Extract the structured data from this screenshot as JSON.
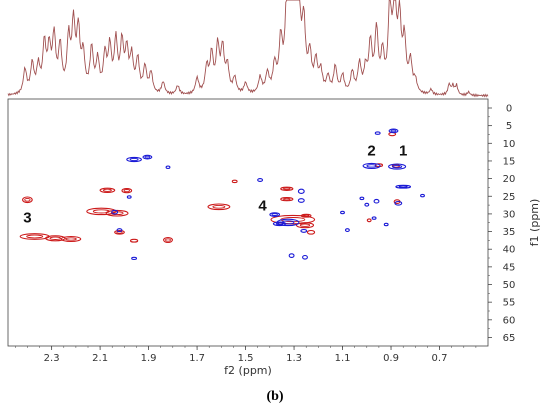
{
  "caption": "(b)",
  "colors": {
    "positive": "#cc1a1a",
    "negative": "#1a1ad6",
    "spectrum": "#a05050",
    "frame": "#444444"
  },
  "chart_data": {
    "type": "heatmap",
    "subtype": "2d-nmr-contour",
    "xlabel": "f2 (ppm)",
    "ylabel": "f1 (ppm)",
    "xlim": [
      2.48,
      0.5
    ],
    "ylim": [
      0,
      66
    ],
    "x_reversed": true,
    "y_inverted": true,
    "x_ticks": [
      {
        "v": 2.3,
        "label": "2.3"
      },
      {
        "v": 2.1,
        "label": "2.1"
      },
      {
        "v": 1.9,
        "label": "1.9"
      },
      {
        "v": 1.7,
        "label": "1.7"
      },
      {
        "v": 1.5,
        "label": "1.5"
      },
      {
        "v": 1.3,
        "label": "1.3"
      },
      {
        "v": 1.1,
        "label": "1.1"
      },
      {
        "v": 0.9,
        "label": "0.9"
      },
      {
        "v": 0.7,
        "label": "0.7"
      }
    ],
    "y_ticks": [
      {
        "v": 0,
        "label": "0"
      },
      {
        "v": 5,
        "label": "5"
      },
      {
        "v": 10,
        "label": "10"
      },
      {
        "v": 15,
        "label": "15"
      },
      {
        "v": 20,
        "label": "20"
      },
      {
        "v": 25,
        "label": "25"
      },
      {
        "v": 30,
        "label": "30"
      },
      {
        "v": 35,
        "label": "35"
      },
      {
        "v": 40,
        "label": "40"
      },
      {
        "v": 45,
        "label": "45"
      },
      {
        "v": 50,
        "label": "50"
      },
      {
        "v": 55,
        "label": "55"
      },
      {
        "v": 60,
        "label": "60"
      },
      {
        "v": 65,
        "label": "65"
      }
    ],
    "annotations": [
      {
        "label": "1",
        "x": 0.85,
        "y": 13.5
      },
      {
        "label": "2",
        "x": 0.98,
        "y": 13.5
      },
      {
        "label": "3",
        "x": 2.4,
        "y": 32.5
      },
      {
        "label": "4",
        "x": 1.43,
        "y": 29
      }
    ],
    "series": [
      {
        "phase": "positive",
        "points": [
          {
            "x": 2.4,
            "y": 26,
            "wx": 0.02,
            "wy": 0.8
          },
          {
            "x": 2.37,
            "y": 36.4,
            "wx": 0.06,
            "wy": 0.8
          },
          {
            "x": 2.285,
            "y": 36.9,
            "wx": 0.04,
            "wy": 0.7
          },
          {
            "x": 2.22,
            "y": 37.1,
            "wx": 0.04,
            "wy": 0.7
          },
          {
            "x": 2.095,
            "y": 29.3,
            "wx": 0.06,
            "wy": 0.9
          },
          {
            "x": 2.03,
            "y": 29.8,
            "wx": 0.045,
            "wy": 0.8
          },
          {
            "x": 2.07,
            "y": 23.3,
            "wx": 0.03,
            "wy": 0.6
          },
          {
            "x": 1.99,
            "y": 23.4,
            "wx": 0.02,
            "wy": 0.6
          },
          {
            "x": 2.02,
            "y": 35.2,
            "wx": 0.02,
            "wy": 0.5
          },
          {
            "x": 1.96,
            "y": 37.6,
            "wx": 0.015,
            "wy": 0.4
          },
          {
            "x": 1.82,
            "y": 37.4,
            "wx": 0.018,
            "wy": 0.7
          },
          {
            "x": 1.61,
            "y": 28,
            "wx": 0.045,
            "wy": 0.8
          },
          {
            "x": 1.545,
            "y": 20.8,
            "wx": 0.01,
            "wy": 0.35
          },
          {
            "x": 1.33,
            "y": 22.9,
            "wx": 0.025,
            "wy": 0.45
          },
          {
            "x": 1.33,
            "y": 25.8,
            "wx": 0.025,
            "wy": 0.45
          },
          {
            "x": 1.305,
            "y": 31.6,
            "wx": 0.09,
            "wy": 1.2
          },
          {
            "x": 1.255,
            "y": 33.2,
            "wx": 0.035,
            "wy": 0.7
          },
          {
            "x": 1.23,
            "y": 35.2,
            "wx": 0.015,
            "wy": 0.5
          },
          {
            "x": 1.25,
            "y": 30.5,
            "wx": 0.02,
            "wy": 0.4
          },
          {
            "x": 0.99,
            "y": 31.8,
            "wx": 0.008,
            "wy": 0.4
          },
          {
            "x": 0.95,
            "y": 16.2,
            "wx": 0.015,
            "wy": 0.4
          },
          {
            "x": 0.895,
            "y": 7.4,
            "wx": 0.014,
            "wy": 0.45
          },
          {
            "x": 0.88,
            "y": 16.4,
            "wx": 0.015,
            "wy": 0.4
          },
          {
            "x": 0.875,
            "y": 26.5,
            "wx": 0.012,
            "wy": 0.5
          }
        ]
      },
      {
        "phase": "negative",
        "points": [
          {
            "x": 1.96,
            "y": 14.6,
            "wx": 0.03,
            "wy": 0.6
          },
          {
            "x": 1.905,
            "y": 13.9,
            "wx": 0.018,
            "wy": 0.5
          },
          {
            "x": 2.04,
            "y": 29.5,
            "wx": 0.012,
            "wy": 0.5
          },
          {
            "x": 2.02,
            "y": 34.6,
            "wx": 0.01,
            "wy": 0.4
          },
          {
            "x": 1.98,
            "y": 25.2,
            "wx": 0.008,
            "wy": 0.35
          },
          {
            "x": 1.96,
            "y": 42.6,
            "wx": 0.01,
            "wy": 0.3
          },
          {
            "x": 1.82,
            "y": 16.8,
            "wx": 0.008,
            "wy": 0.35
          },
          {
            "x": 1.44,
            "y": 20.4,
            "wx": 0.01,
            "wy": 0.4
          },
          {
            "x": 1.38,
            "y": 30.2,
            "wx": 0.02,
            "wy": 0.5
          },
          {
            "x": 1.36,
            "y": 32.8,
            "wx": 0.025,
            "wy": 0.5
          },
          {
            "x": 1.325,
            "y": 32.4,
            "wx": 0.045,
            "wy": 0.9
          },
          {
            "x": 1.27,
            "y": 23.6,
            "wx": 0.012,
            "wy": 0.6
          },
          {
            "x": 1.27,
            "y": 26.2,
            "wx": 0.012,
            "wy": 0.5
          },
          {
            "x": 1.26,
            "y": 34.8,
            "wx": 0.012,
            "wy": 0.4
          },
          {
            "x": 1.31,
            "y": 41.8,
            "wx": 0.01,
            "wy": 0.5
          },
          {
            "x": 1.255,
            "y": 42.3,
            "wx": 0.01,
            "wy": 0.5
          },
          {
            "x": 1.1,
            "y": 29.6,
            "wx": 0.008,
            "wy": 0.35
          },
          {
            "x": 1.08,
            "y": 34.6,
            "wx": 0.008,
            "wy": 0.4
          },
          {
            "x": 1.02,
            "y": 25.6,
            "wx": 0.008,
            "wy": 0.35
          },
          {
            "x": 1.0,
            "y": 27.4,
            "wx": 0.008,
            "wy": 0.4
          },
          {
            "x": 0.97,
            "y": 31.2,
            "wx": 0.008,
            "wy": 0.35
          },
          {
            "x": 0.955,
            "y": 7.1,
            "wx": 0.01,
            "wy": 0.35
          },
          {
            "x": 0.98,
            "y": 16.4,
            "wx": 0.035,
            "wy": 0.7
          },
          {
            "x": 0.96,
            "y": 26.4,
            "wx": 0.01,
            "wy": 0.5
          },
          {
            "x": 0.89,
            "y": 6.5,
            "wx": 0.018,
            "wy": 0.5
          },
          {
            "x": 0.875,
            "y": 16.6,
            "wx": 0.035,
            "wy": 0.7
          },
          {
            "x": 0.85,
            "y": 22.3,
            "wx": 0.03,
            "wy": 0.4
          },
          {
            "x": 0.87,
            "y": 27.0,
            "wx": 0.014,
            "wy": 0.5
          },
          {
            "x": 0.77,
            "y": 24.8,
            "wx": 0.008,
            "wy": 0.35
          },
          {
            "x": 0.92,
            "y": 33.0,
            "wx": 0.008,
            "wy": 0.35
          }
        ]
      }
    ],
    "projection": {
      "axis": "f2",
      "peaks": [
        {
          "x": 2.41,
          "h": 0.28,
          "w": 0.008
        },
        {
          "x": 2.38,
          "h": 0.34,
          "w": 0.008
        },
        {
          "x": 2.355,
          "h": 0.3,
          "w": 0.008
        },
        {
          "x": 2.33,
          "h": 0.55,
          "w": 0.008
        },
        {
          "x": 2.31,
          "h": 0.48,
          "w": 0.008
        },
        {
          "x": 2.29,
          "h": 0.62,
          "w": 0.008
        },
        {
          "x": 2.265,
          "h": 0.52,
          "w": 0.008
        },
        {
          "x": 2.23,
          "h": 0.6,
          "w": 0.008
        },
        {
          "x": 2.21,
          "h": 0.75,
          "w": 0.008
        },
        {
          "x": 2.19,
          "h": 0.68,
          "w": 0.008
        },
        {
          "x": 2.17,
          "h": 0.42,
          "w": 0.008
        },
        {
          "x": 2.135,
          "h": 0.5,
          "w": 0.008
        },
        {
          "x": 2.11,
          "h": 0.36,
          "w": 0.008
        },
        {
          "x": 2.08,
          "h": 0.42,
          "w": 0.008
        },
        {
          "x": 2.06,
          "h": 0.5,
          "w": 0.008
        },
        {
          "x": 2.035,
          "h": 0.58,
          "w": 0.008
        },
        {
          "x": 2.01,
          "h": 0.55,
          "w": 0.008
        },
        {
          "x": 1.99,
          "h": 0.46,
          "w": 0.008
        },
        {
          "x": 1.97,
          "h": 0.4,
          "w": 0.008
        },
        {
          "x": 1.945,
          "h": 0.38,
          "w": 0.008
        },
        {
          "x": 1.915,
          "h": 0.3,
          "w": 0.008
        },
        {
          "x": 1.89,
          "h": 0.24,
          "w": 0.008
        },
        {
          "x": 1.84,
          "h": 0.14,
          "w": 0.008
        },
        {
          "x": 1.78,
          "h": 0.1,
          "w": 0.008
        },
        {
          "x": 1.7,
          "h": 0.18,
          "w": 0.008
        },
        {
          "x": 1.66,
          "h": 0.3,
          "w": 0.008
        },
        {
          "x": 1.64,
          "h": 0.44,
          "w": 0.008
        },
        {
          "x": 1.615,
          "h": 0.52,
          "w": 0.008
        },
        {
          "x": 1.595,
          "h": 0.5,
          "w": 0.008
        },
        {
          "x": 1.575,
          "h": 0.3,
          "w": 0.008
        },
        {
          "x": 1.545,
          "h": 0.18,
          "w": 0.008
        },
        {
          "x": 1.5,
          "h": 0.12,
          "w": 0.008
        },
        {
          "x": 1.44,
          "h": 0.18,
          "w": 0.008
        },
        {
          "x": 1.41,
          "h": 0.22,
          "w": 0.008
        },
        {
          "x": 1.38,
          "h": 0.3,
          "w": 0.008
        },
        {
          "x": 1.355,
          "h": 0.55,
          "w": 0.008
        },
        {
          "x": 1.33,
          "h": 0.82,
          "w": 0.008
        },
        {
          "x": 1.31,
          "h": 1.6,
          "w": 0.01
        },
        {
          "x": 1.285,
          "h": 1.45,
          "w": 0.01
        },
        {
          "x": 1.26,
          "h": 0.7,
          "w": 0.008
        },
        {
          "x": 1.235,
          "h": 0.4,
          "w": 0.008
        },
        {
          "x": 1.21,
          "h": 0.34,
          "w": 0.008
        },
        {
          "x": 1.19,
          "h": 0.24,
          "w": 0.008
        },
        {
          "x": 1.16,
          "h": 0.18,
          "w": 0.008
        },
        {
          "x": 1.13,
          "h": 0.3,
          "w": 0.008
        },
        {
          "x": 1.1,
          "h": 0.2,
          "w": 0.008
        },
        {
          "x": 1.06,
          "h": 0.24,
          "w": 0.008
        },
        {
          "x": 1.03,
          "h": 0.33,
          "w": 0.008
        },
        {
          "x": 1.005,
          "h": 0.26,
          "w": 0.008
        },
        {
          "x": 0.985,
          "h": 0.55,
          "w": 0.008
        },
        {
          "x": 0.96,
          "h": 0.7,
          "w": 0.008
        },
        {
          "x": 0.935,
          "h": 0.42,
          "w": 0.008
        },
        {
          "x": 0.905,
          "h": 0.95,
          "w": 0.008
        },
        {
          "x": 0.885,
          "h": 1.1,
          "w": 0.008
        },
        {
          "x": 0.865,
          "h": 0.8,
          "w": 0.008
        },
        {
          "x": 0.845,
          "h": 0.58,
          "w": 0.008
        },
        {
          "x": 0.82,
          "h": 0.35,
          "w": 0.008
        },
        {
          "x": 0.8,
          "h": 0.14,
          "w": 0.008
        },
        {
          "x": 0.735,
          "h": 0.06,
          "w": 0.006
        },
        {
          "x": 0.66,
          "h": 0.12,
          "w": 0.006
        },
        {
          "x": 0.645,
          "h": 0.1,
          "w": 0.006
        },
        {
          "x": 0.63,
          "h": 0.11,
          "w": 0.006
        },
        {
          "x": 0.58,
          "h": 0.04,
          "w": 0.006
        }
      ]
    }
  }
}
